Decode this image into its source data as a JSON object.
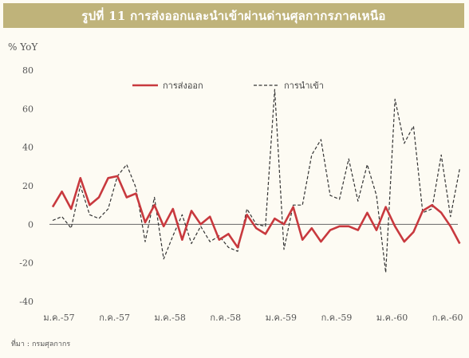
{
  "title": "รูปที่ 11 การส่งออกและนำเข้าผ่านด่านศุลกากรภาคเหนือ",
  "unit": "% YoY",
  "source": {
    "label": "ที่มา",
    "text": "กรมศุลกากร"
  },
  "colors": {
    "export": "#c8393e",
    "import": "#333333",
    "title_bg": "#bfb37a",
    "background": "#fdfbf3"
  },
  "chart_data": {
    "type": "line",
    "ylabel": "% YoY",
    "ylim": [
      -40,
      80
    ],
    "yticks": [
      -40,
      -20,
      0,
      20,
      40,
      60,
      80
    ],
    "x_ticks": [
      "ม.ค.-57",
      "ก.ค.-57",
      "ม.ค.-58",
      "ก.ค.-58",
      "ม.ค.-59",
      "ก.ค.-59",
      "ม.ค.-60",
      "ก.ค.-60"
    ],
    "x_tick_months": [
      0,
      6,
      12,
      18,
      24,
      30,
      36,
      42
    ],
    "grid": false,
    "legend_position": "top",
    "series": [
      {
        "name": "การส่งออก",
        "style": "solid",
        "values": [
          9,
          17,
          8,
          24,
          10,
          14,
          24,
          25,
          14,
          16,
          1,
          10,
          -1,
          8,
          -8,
          7,
          0,
          4,
          -8,
          -5,
          -12,
          5,
          -2,
          -5,
          3,
          0,
          9,
          -8,
          -2,
          -9,
          -3,
          -1,
          -1,
          -3,
          6,
          -3,
          9,
          -1,
          -9,
          -4,
          7,
          10,
          6,
          -1,
          -10
        ]
      },
      {
        "name": "การนำเข้า",
        "style": "dashed",
        "values": [
          2,
          4,
          -2,
          20,
          5,
          3,
          8,
          25,
          31,
          19,
          -9,
          14,
          -18,
          -6,
          5,
          -10,
          -1,
          -9,
          -6,
          -12,
          -14,
          8,
          0,
          -1,
          70,
          -13,
          10,
          10,
          36,
          44,
          15,
          13,
          34,
          12,
          31,
          15,
          -25,
          65,
          42,
          51,
          6,
          8,
          36,
          4,
          29
        ]
      }
    ]
  }
}
